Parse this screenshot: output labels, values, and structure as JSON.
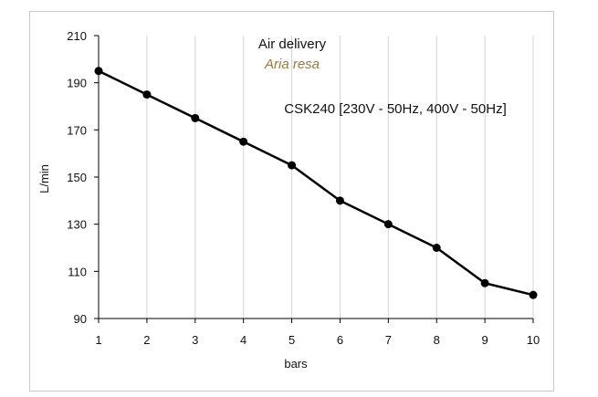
{
  "chart_data": {
    "type": "line",
    "title": "Air delivery",
    "subtitle": "Aria resa",
    "series_label": "CSK240 [230V - 50Hz, 400V - 50Hz]",
    "xlabel": "bars",
    "ylabel": "L/min",
    "x": [
      1,
      2,
      3,
      4,
      5,
      6,
      7,
      8,
      9,
      10
    ],
    "series": [
      {
        "values": [
          195,
          185,
          175,
          165,
          155,
          140,
          130,
          120,
          105,
          100
        ]
      }
    ],
    "xlim": [
      1,
      10
    ],
    "ylim": [
      90,
      210
    ],
    "y_ticks": [
      90,
      110,
      130,
      150,
      170,
      190,
      210
    ],
    "x_ticks": [
      1,
      2,
      3,
      4,
      5,
      6,
      7,
      8,
      9,
      10
    ],
    "grid": "vertical",
    "colors": {
      "line": "#000000",
      "grid": "#d4d4d4",
      "subtitle": "#9a7a3a"
    }
  }
}
